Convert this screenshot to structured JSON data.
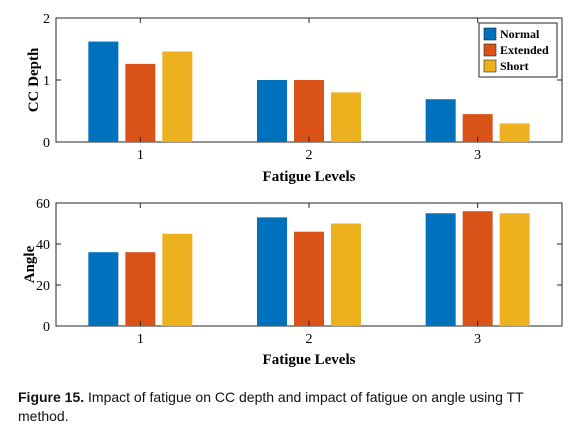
{
  "chart_data": [
    {
      "type": "bar",
      "categories": [
        "1",
        "2",
        "3"
      ],
      "series": [
        {
          "name": "Normal",
          "values": [
            1.62,
            1.0,
            0.69
          ]
        },
        {
          "name": "Extended",
          "values": [
            1.26,
            1.0,
            0.45
          ]
        },
        {
          "name": "Short",
          "values": [
            1.46,
            0.8,
            0.3
          ]
        }
      ],
      "xlabel": "Fatigue Levels",
      "ylabel": "CC Depth",
      "ylim": [
        0,
        2
      ],
      "yticks": [
        "0",
        "1",
        "2"
      ],
      "legend": "top-right",
      "grid": false
    },
    {
      "type": "bar",
      "categories": [
        "1",
        "2",
        "3"
      ],
      "series": [
        {
          "name": "Normal",
          "values": [
            36,
            53,
            55
          ]
        },
        {
          "name": "Extended",
          "values": [
            36,
            46,
            56
          ]
        },
        {
          "name": "Short",
          "values": [
            45,
            50,
            55
          ]
        }
      ],
      "xlabel": "Fatigue Levels",
      "ylabel": "Angle",
      "ylim": [
        0,
        60
      ],
      "yticks": [
        "0",
        "20",
        "40",
        "60"
      ],
      "grid": false
    }
  ],
  "colors": {
    "Normal": "#0072BD",
    "Extended": "#D95319",
    "Short": "#EDB120"
  },
  "caption": {
    "label": "Figure 15.",
    "text": " Impact of fatigue on CC depth and impact of fatigue on angle using TT method."
  }
}
